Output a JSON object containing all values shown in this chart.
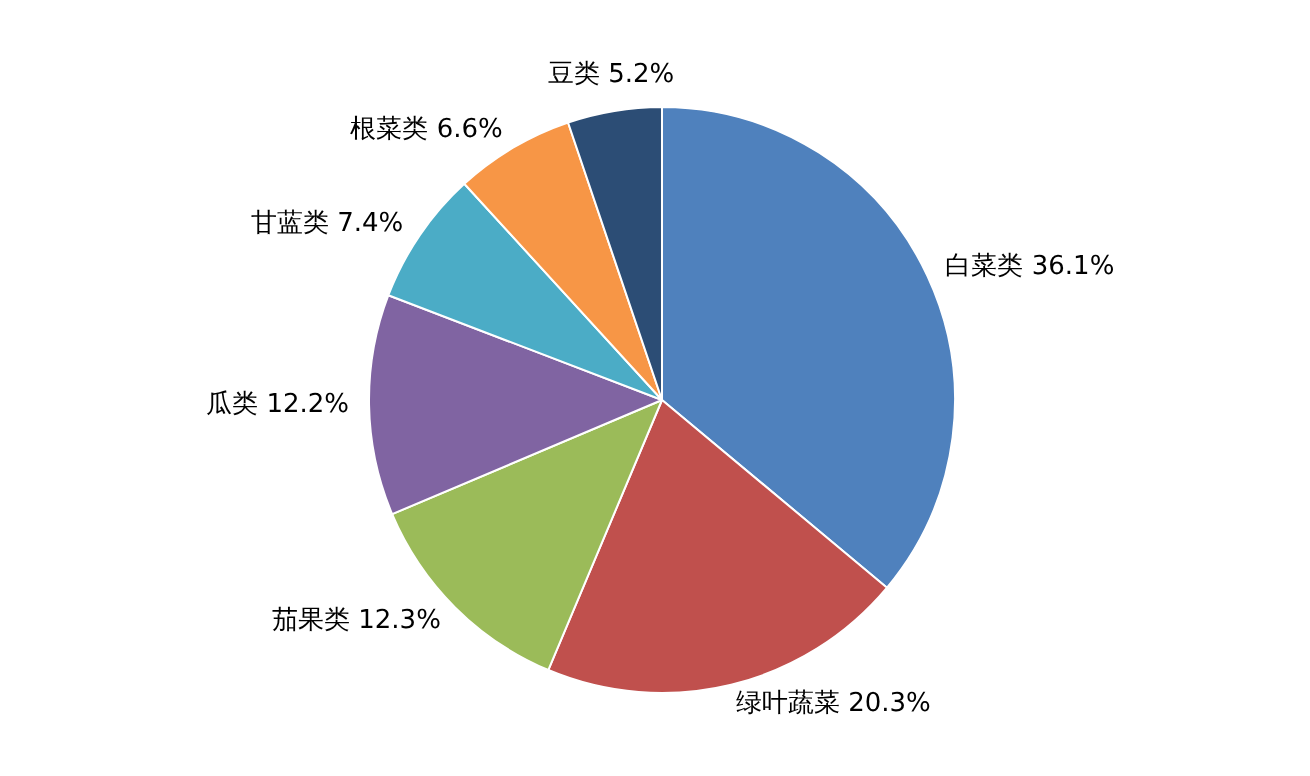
{
  "chart_data": {
    "type": "pie",
    "categories": [
      "白菜类",
      "绿叶蔬菜",
      "茄果类",
      "瓜类",
      "甘蓝类",
      "根菜类",
      "豆类"
    ],
    "values": [
      36.1,
      20.3,
      12.3,
      12.2,
      7.4,
      6.6,
      5.2
    ],
    "value_labels": [
      "36.1%",
      "20.3%",
      "12.3%",
      "12.2%",
      "7.4%",
      "6.6%",
      "5.2%"
    ],
    "colors": [
      "#4f81bd",
      "#c0504d",
      "#9bbb59",
      "#8064a2",
      "#4bacc6",
      "#f79646",
      "#2c4d75"
    ],
    "legend": false
  }
}
